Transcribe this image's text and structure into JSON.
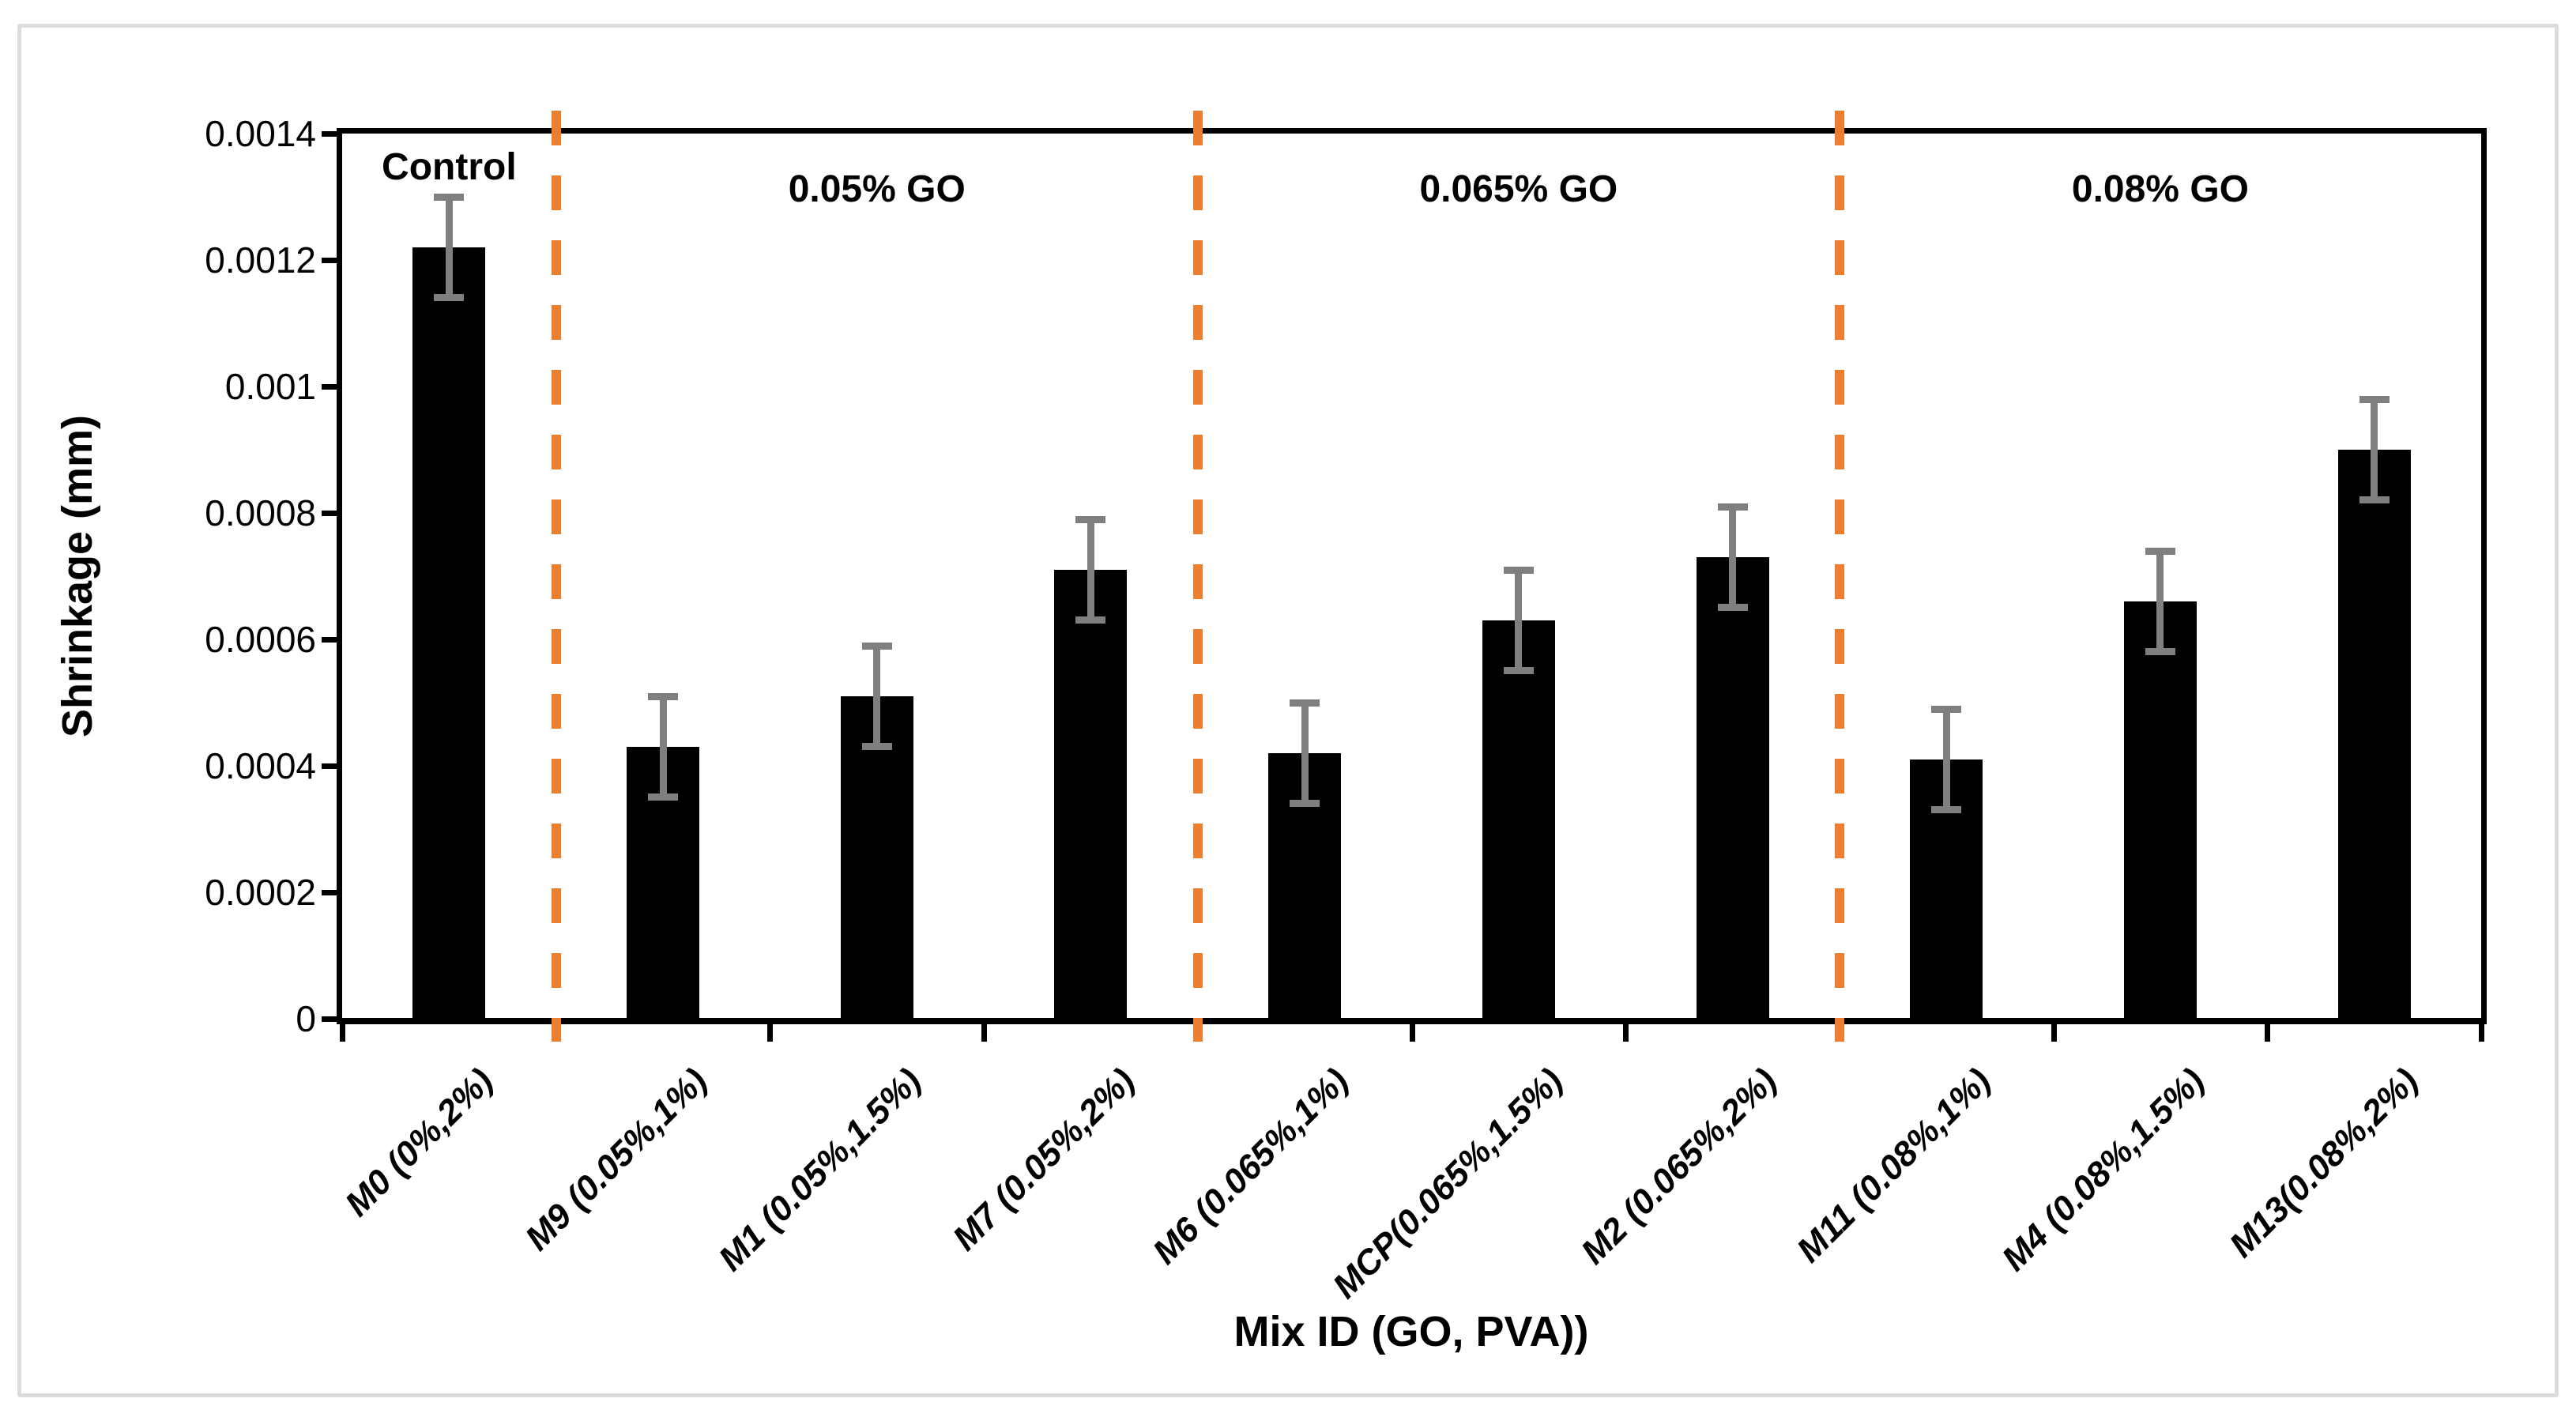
{
  "figure": {
    "background_color": "#ffffff",
    "frame_color": "#dcdcdc"
  },
  "chart_data": {
    "type": "bar",
    "title": "",
    "xlabel": "Mix ID (GO, PVA))",
    "ylabel": "Shrinkage (mm)",
    "ylim": [
      0,
      0.0014
    ],
    "ytick_interval": 0.0002,
    "ytick_labels": [
      "0",
      "0.0002",
      "0.0004",
      "0.0006",
      "0.0008",
      "0.001",
      "0.0012",
      "0.0014"
    ],
    "grid": false,
    "legend": "none",
    "bar_color": "#000000",
    "error_bar_color": "#7f7f7f",
    "divider_color": "#ed7d31",
    "categories": [
      "M0 (0%,2%)",
      "M9 (0.05%,1%)",
      "M1 (0.05%,1.5%)",
      "M7 (0.05%,2%)",
      "M6 (0.065%,1%)",
      "MCP(0.065%,1.5%)",
      "M2 (0.065%,2%)",
      "M11 (0.08%,1%)",
      "M4 (0.08%,1.5%)",
      "M13(0.08%,2%)"
    ],
    "values": [
      0.00122,
      0.00043,
      0.00051,
      0.00071,
      0.00042,
      0.00063,
      0.00073,
      0.00041,
      0.00066,
      0.0009
    ],
    "error": [
      8e-05,
      8e-05,
      8e-05,
      8e-05,
      8e-05,
      8e-05,
      8e-05,
      8e-05,
      8e-05,
      8e-05
    ],
    "sections": [
      {
        "label": "Control",
        "start": 0,
        "end": 1
      },
      {
        "label": "0.05% GO",
        "start": 1,
        "end": 4
      },
      {
        "label": "0.065% GO",
        "start": 4,
        "end": 7
      },
      {
        "label": "0.08% GO",
        "start": 7,
        "end": 10
      }
    ],
    "dividers_after_category": [
      1,
      4,
      7
    ]
  }
}
